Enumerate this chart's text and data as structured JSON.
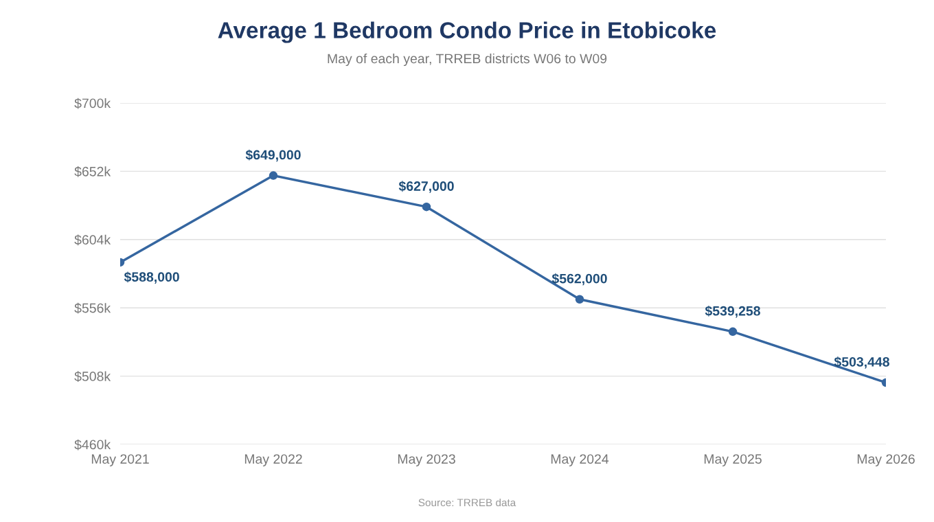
{
  "chart_data": {
    "type": "line",
    "title": "Average 1 Bedroom Condo Price in Etobicoke",
    "subtitle": "May of each year, TRREB districts W06 to W09",
    "categories": [
      "May 2021",
      "May 2022",
      "May 2023",
      "May 2024",
      "May 2025",
      "May 2026"
    ],
    "series": [
      {
        "color": "#3566a0",
        "values": [
          588000,
          649000,
          627000,
          562000,
          539258,
          503448
        ],
        "value_labels": [
          "$588,000",
          "$649,000",
          "$627,000",
          "$562,000",
          "$539,258",
          "$503,448"
        ]
      }
    ],
    "ylim": [
      460000,
      700000
    ],
    "yticks": [
      {
        "value": 460000,
        "label": "$460k"
      },
      {
        "value": 508000,
        "label": "$508k"
      },
      {
        "value": 556000,
        "label": "$556k"
      },
      {
        "value": 604000,
        "label": "$604k"
      },
      {
        "value": 652000,
        "label": "$652k"
      },
      {
        "value": 700000,
        "label": "$700k"
      }
    ],
    "grid": "y",
    "marker": "circle",
    "line_style": "solid",
    "legend": false,
    "annotations": [
      "Source: TRREB data"
    ]
  }
}
